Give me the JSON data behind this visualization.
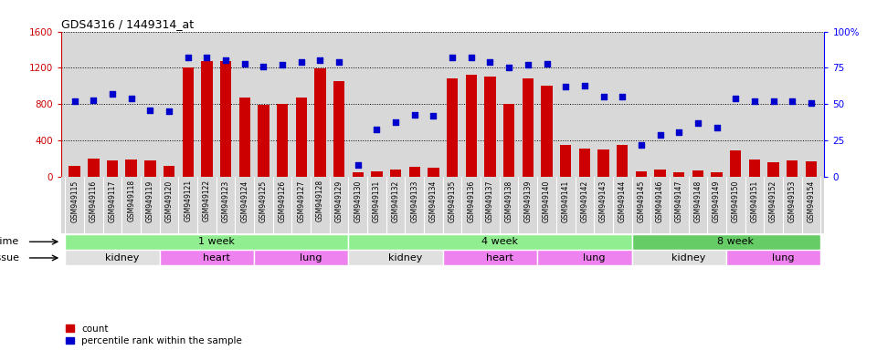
{
  "title": "GDS4316 / 1449314_at",
  "samples": [
    "GSM949115",
    "GSM949116",
    "GSM949117",
    "GSM949118",
    "GSM949119",
    "GSM949120",
    "GSM949121",
    "GSM949122",
    "GSM949123",
    "GSM949124",
    "GSM949125",
    "GSM949126",
    "GSM949127",
    "GSM949128",
    "GSM949129",
    "GSM949130",
    "GSM949131",
    "GSM949132",
    "GSM949133",
    "GSM949134",
    "GSM949135",
    "GSM949136",
    "GSM949137",
    "GSM949138",
    "GSM949139",
    "GSM949140",
    "GSM949141",
    "GSM949142",
    "GSM949143",
    "GSM949144",
    "GSM949145",
    "GSM949146",
    "GSM949147",
    "GSM949148",
    "GSM949149",
    "GSM949150",
    "GSM949151",
    "GSM949152",
    "GSM949153",
    "GSM949154"
  ],
  "counts": [
    120,
    200,
    180,
    195,
    185,
    120,
    1200,
    1270,
    1270,
    875,
    790,
    800,
    875,
    1190,
    1050,
    55,
    65,
    80,
    110,
    100,
    1080,
    1120,
    1100,
    800,
    1080,
    1000,
    355,
    310,
    305,
    355,
    65,
    80,
    55,
    70,
    55,
    290,
    195,
    165,
    185,
    175
  ],
  "percentile": [
    52,
    53,
    57,
    54,
    46,
    45,
    82,
    82,
    80,
    78,
    76,
    77,
    79,
    80,
    79,
    8,
    33,
    38,
    43,
    42,
    82,
    82,
    79,
    75,
    77,
    78,
    62,
    63,
    55,
    55,
    22,
    29,
    31,
    37,
    34,
    54,
    52,
    52,
    52,
    51
  ],
  "ylim_left": [
    0,
    1600
  ],
  "ylim_right": [
    0,
    100
  ],
  "yticks_left": [
    0,
    400,
    800,
    1200,
    1600
  ],
  "yticks_right": [
    0,
    25,
    50,
    75,
    100
  ],
  "bar_color": "#cc0000",
  "dot_color": "#0000cc",
  "bg_color": "#d8d8d8",
  "time_groups": [
    {
      "label": "1 week",
      "start": 0,
      "end": 15,
      "color": "#90ee90"
    },
    {
      "label": "4 week",
      "start": 15,
      "end": 30,
      "color": "#90ee90"
    },
    {
      "label": "8 week",
      "start": 30,
      "end": 40,
      "color": "#66cc66"
    }
  ],
  "tissue_groups": [
    {
      "label": "kidney",
      "start": 0,
      "end": 5,
      "color": "#e0e0e0"
    },
    {
      "label": "heart",
      "start": 5,
      "end": 10,
      "color": "#ee82ee"
    },
    {
      "label": "lung",
      "start": 10,
      "end": 15,
      "color": "#ee82ee"
    },
    {
      "label": "kidney",
      "start": 15,
      "end": 20,
      "color": "#e0e0e0"
    },
    {
      "label": "heart",
      "start": 20,
      "end": 25,
      "color": "#ee82ee"
    },
    {
      "label": "lung",
      "start": 25,
      "end": 30,
      "color": "#ee82ee"
    },
    {
      "label": "kidney",
      "start": 30,
      "end": 35,
      "color": "#e0e0e0"
    },
    {
      "label": "lung",
      "start": 35,
      "end": 40,
      "color": "#ee82ee"
    }
  ],
  "legend_items": [
    {
      "label": "count",
      "color": "#cc0000"
    },
    {
      "label": "percentile rank within the sample",
      "color": "#0000cc"
    }
  ]
}
